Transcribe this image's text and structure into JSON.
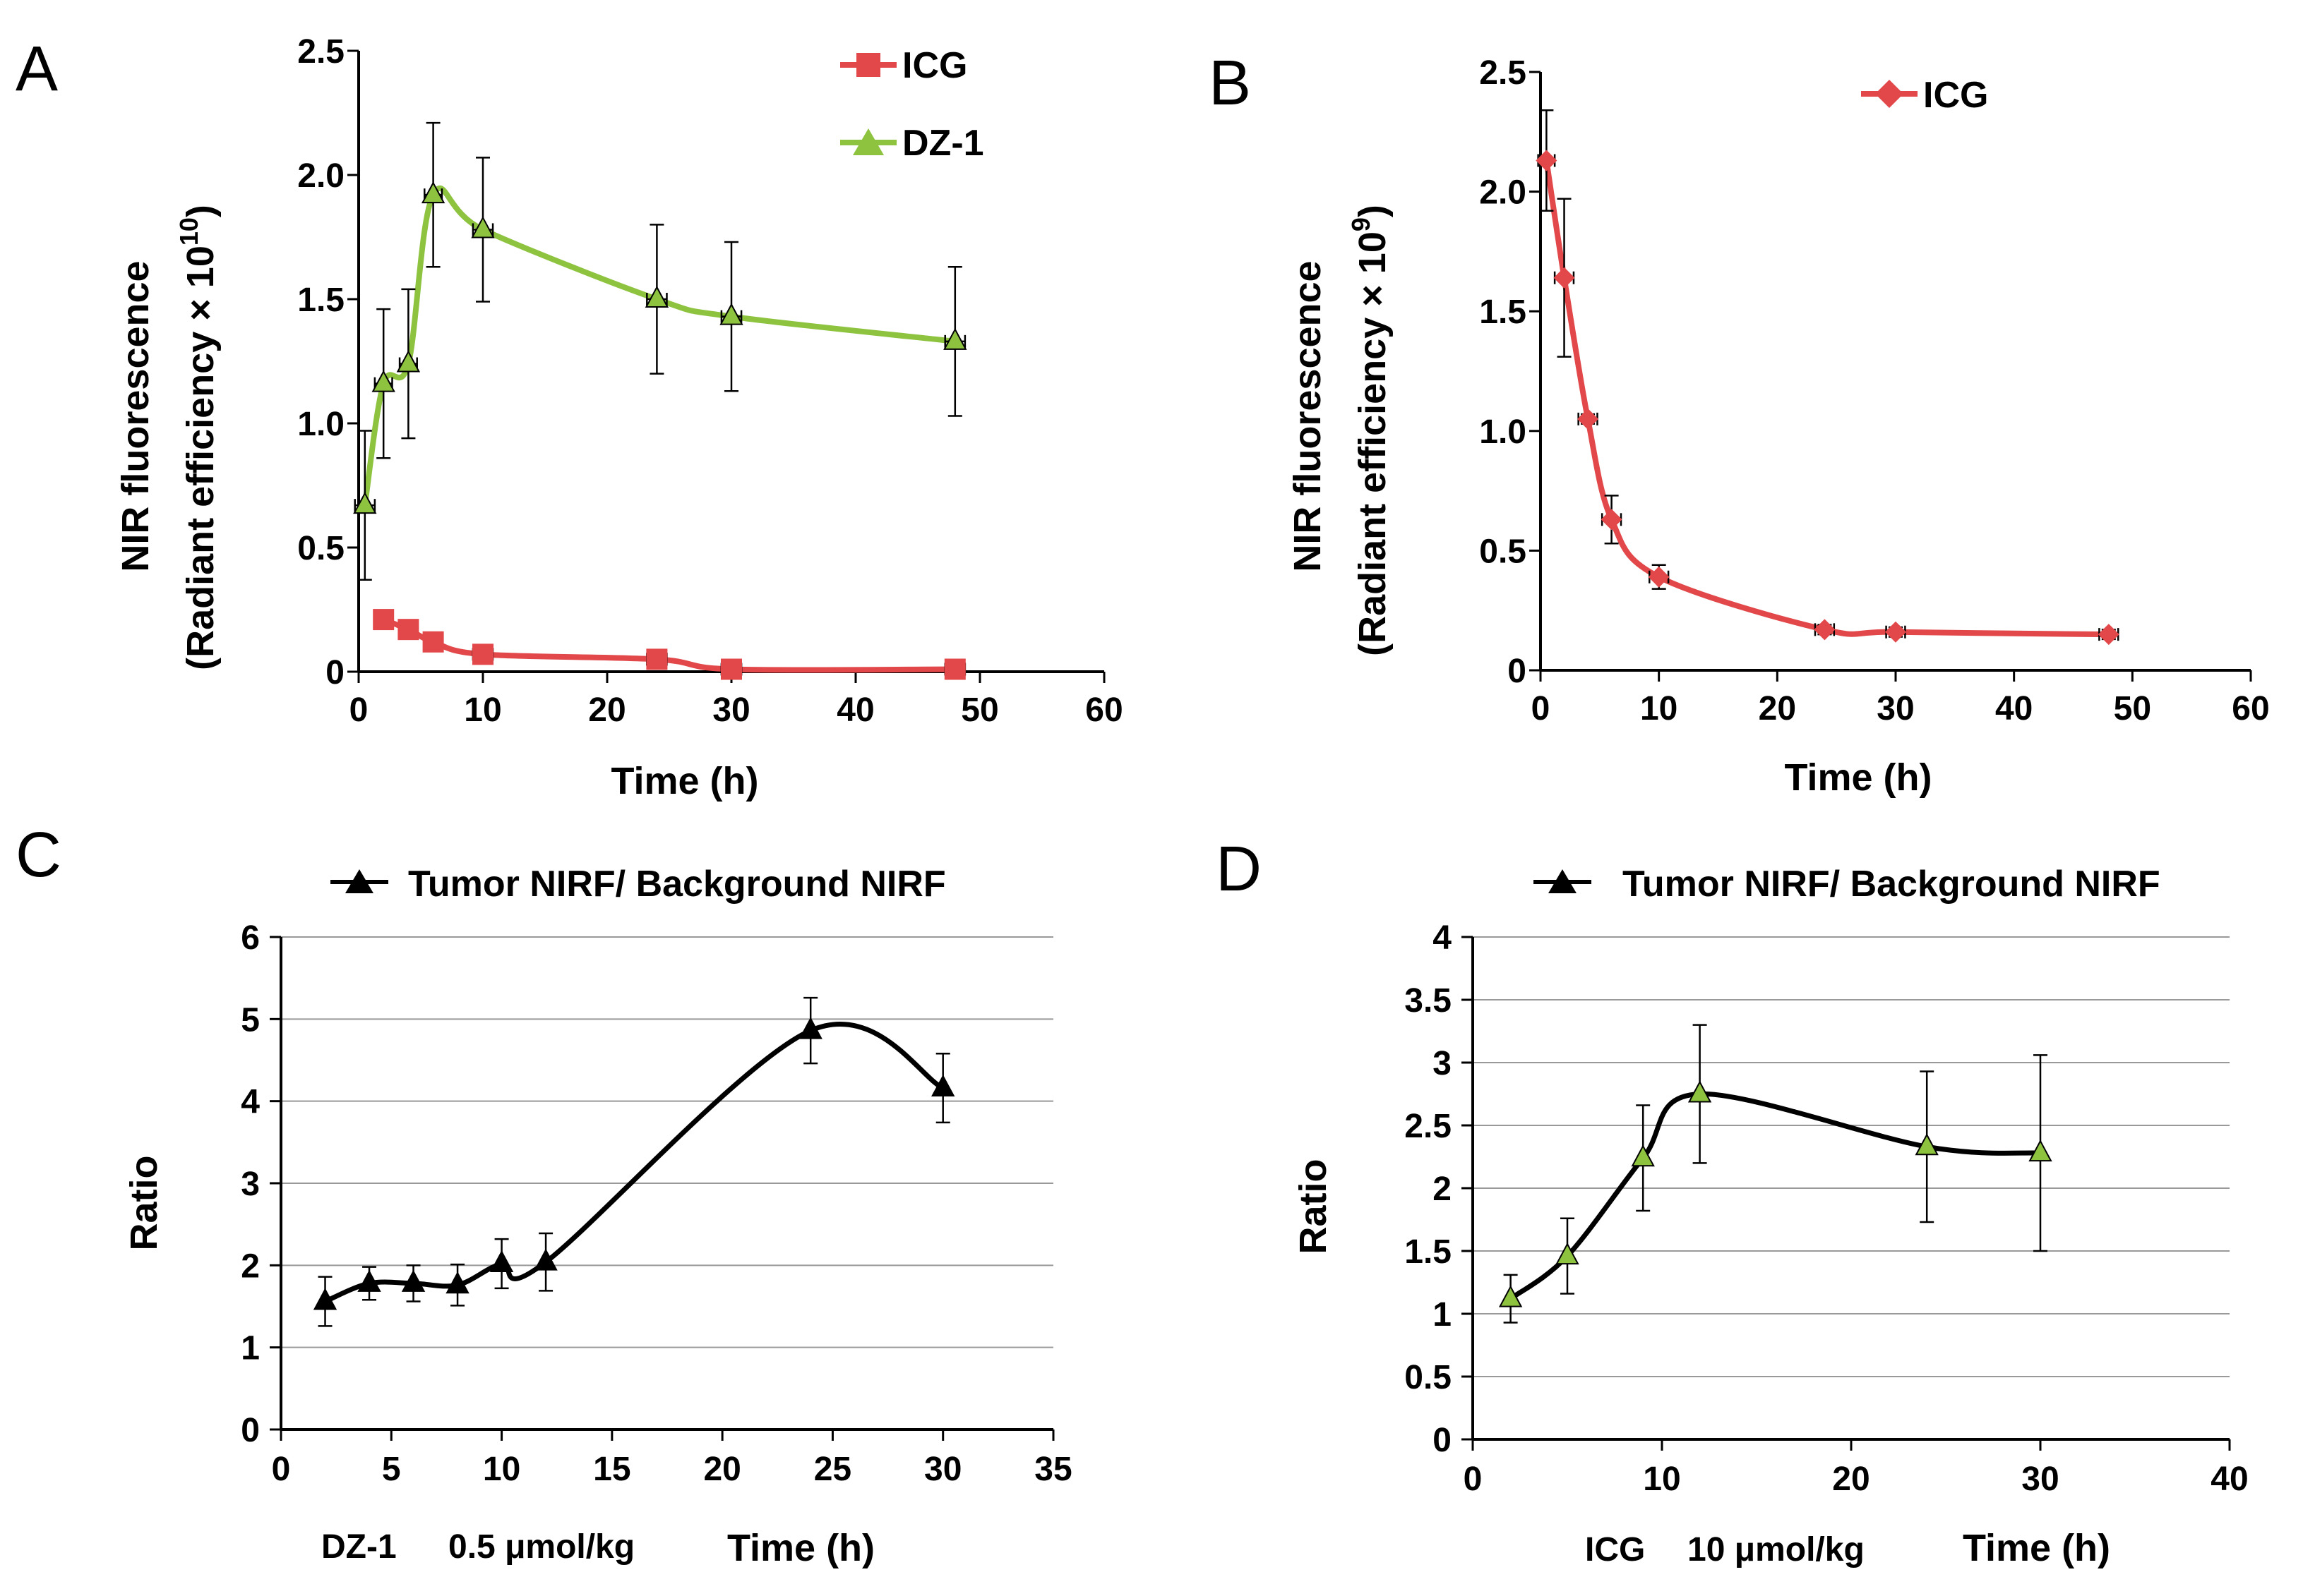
{
  "figure": {
    "panel_labels": [
      "A",
      "B",
      "C",
      "D"
    ]
  },
  "chart_data": [
    {
      "panel": "A",
      "type": "line",
      "title": "",
      "xlabel": "Time (h)",
      "ylabel": "NIR fluorescence",
      "ylabel_line2": "(Radiant efficiency × 10",
      "ylabel_exponent": "10",
      "ylabel_close": ")",
      "xlim": [
        0,
        60
      ],
      "ylim": [
        0,
        2.5
      ],
      "xticks": [
        "0",
        "10",
        "20",
        "30",
        "40",
        "50",
        "60"
      ],
      "yticks": [
        "0",
        "0.5",
        "1.0",
        "1.5",
        "2.0",
        "2.5"
      ],
      "legend_position": "top-right",
      "series": [
        {
          "name": "ICG",
          "color": "#e2484a",
          "marker": "square",
          "x": [
            2,
            4,
            6,
            10,
            24,
            30,
            48
          ],
          "y": [
            0.21,
            0.17,
            0.12,
            0.07,
            0.05,
            0.01,
            0.01
          ],
          "xerr": [
            0.7,
            0.7,
            0.7,
            0.8,
            0.8,
            0.8,
            0.8
          ],
          "yerr": [
            0.01,
            0.01,
            0.01,
            0.01,
            0.01,
            0.01,
            0.01
          ]
        },
        {
          "name": "DZ-1",
          "color": "#8dc33f",
          "marker": "triangle",
          "x": [
            0.5,
            2,
            4,
            6,
            10,
            24,
            30,
            48
          ],
          "y": [
            0.67,
            1.16,
            1.24,
            1.92,
            1.78,
            1.5,
            1.43,
            1.33
          ],
          "xerr": [
            0.8,
            0.7,
            0.7,
            0.7,
            0.8,
            0.8,
            0.8,
            0.8
          ],
          "yerr": [
            0.3,
            0.3,
            0.3,
            0.29,
            0.29,
            0.3,
            0.3,
            0.3
          ]
        }
      ]
    },
    {
      "panel": "B",
      "type": "line",
      "title": "",
      "xlabel": "Time (h)",
      "ylabel": "NIR fluorescence",
      "ylabel_line2": "(Radiant efficiency × 10",
      "ylabel_exponent": "9",
      "ylabel_close": ")",
      "xlim": [
        0,
        60
      ],
      "ylim": [
        0,
        2.5
      ],
      "xticks": [
        "0",
        "10",
        "20",
        "30",
        "40",
        "50",
        "60"
      ],
      "yticks": [
        "0",
        "0.5",
        "1.0",
        "1.5",
        "2.0",
        "2.5"
      ],
      "legend_position": "top-right",
      "series": [
        {
          "name": "ICG",
          "color": "#e2484a",
          "marker": "diamond",
          "x": [
            0.5,
            2,
            4,
            6,
            10,
            24,
            30,
            48
          ],
          "y": [
            2.13,
            1.64,
            1.05,
            0.63,
            0.39,
            0.17,
            0.16,
            0.15
          ],
          "xerr": [
            0.7,
            0.8,
            0.8,
            0.8,
            0.8,
            0.8,
            0.8,
            0.8
          ],
          "yerr": [
            0.21,
            0.33,
            0.02,
            0.1,
            0.05,
            0.02,
            0.02,
            0.02
          ]
        }
      ]
    },
    {
      "panel": "C",
      "type": "line",
      "title": "",
      "xlabel": "Time (h)",
      "ylabel": "Ratio",
      "note_agent": "DZ-1",
      "note_dose": "0.5 μmol/kg",
      "xlim": [
        0,
        35
      ],
      "ylim": [
        0,
        6
      ],
      "xticks": [
        "0",
        "5",
        "10",
        "15",
        "20",
        "25",
        "30",
        "35"
      ],
      "yticks": [
        "0",
        "1",
        "2",
        "3",
        "4",
        "5",
        "6"
      ],
      "grid": true,
      "legend_position": "top",
      "series": [
        {
          "name": "Tumor NIRF/ Background NIRF",
          "color": "#000000",
          "marker": "triangle",
          "x": [
            2,
            4,
            6,
            8,
            10,
            12,
            24,
            30
          ],
          "y": [
            1.56,
            1.78,
            1.78,
            1.76,
            2.02,
            2.04,
            4.86,
            4.16
          ],
          "yerr": [
            0.3,
            0.2,
            0.22,
            0.25,
            0.3,
            0.35,
            0.4,
            0.42
          ]
        }
      ]
    },
    {
      "panel": "D",
      "type": "line",
      "title": "",
      "xlabel": "Time (h)",
      "ylabel": "Ratio",
      "note_agent": "ICG",
      "note_dose": "10 μmol/kg",
      "xlim": [
        0,
        40
      ],
      "ylim": [
        0,
        4
      ],
      "xticks": [
        "0",
        "10",
        "20",
        "30",
        "40"
      ],
      "yticks": [
        "0",
        "0.5",
        "1",
        "1.5",
        "2",
        "2.5",
        "3",
        "3.5",
        "4"
      ],
      "grid": true,
      "legend_position": "top",
      "series": [
        {
          "name": "Tumor NIRF/ Background NIRF",
          "color": "#000000",
          "marker": "triangle",
          "marker_fill": "#8dc33f",
          "x": [
            2,
            5,
            9,
            12,
            24,
            30
          ],
          "y": [
            1.12,
            1.46,
            2.24,
            2.75,
            2.33,
            2.28
          ],
          "yerr": [
            0.19,
            0.3,
            0.42,
            0.55,
            0.6,
            0.78
          ]
        }
      ]
    }
  ]
}
